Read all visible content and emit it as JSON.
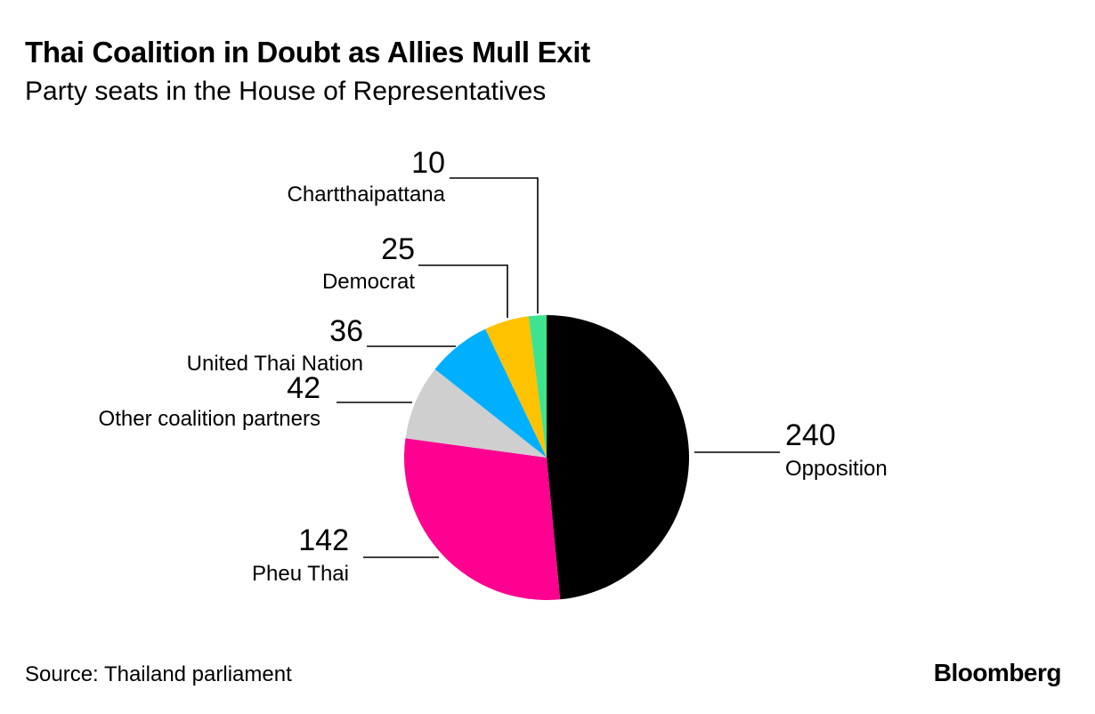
{
  "title": "Thai Coalition in Doubt as Allies Mull Exit",
  "subtitle": "Party seats in the House of Representatives",
  "source": "Source: Thailand parliament",
  "brand": "Bloomberg",
  "chart_data": {
    "type": "pie",
    "title": "Thai Coalition in Doubt as Allies Mull Exit",
    "subtitle": "Party seats in the House of Representatives",
    "slices": [
      {
        "label": "Opposition",
        "value": 240,
        "color": "#000000"
      },
      {
        "label": "Pheu Thai",
        "value": 142,
        "color": "#ff0090"
      },
      {
        "label": "Other coalition partners",
        "value": 42,
        "color": "#cfcfcf"
      },
      {
        "label": "United Thai Nation",
        "value": 36,
        "color": "#00b0ff"
      },
      {
        "label": "Democrat",
        "value": 25,
        "color": "#ffc200"
      },
      {
        "label": "Chartthaipattana",
        "value": 10,
        "color": "#3de38f"
      }
    ]
  }
}
